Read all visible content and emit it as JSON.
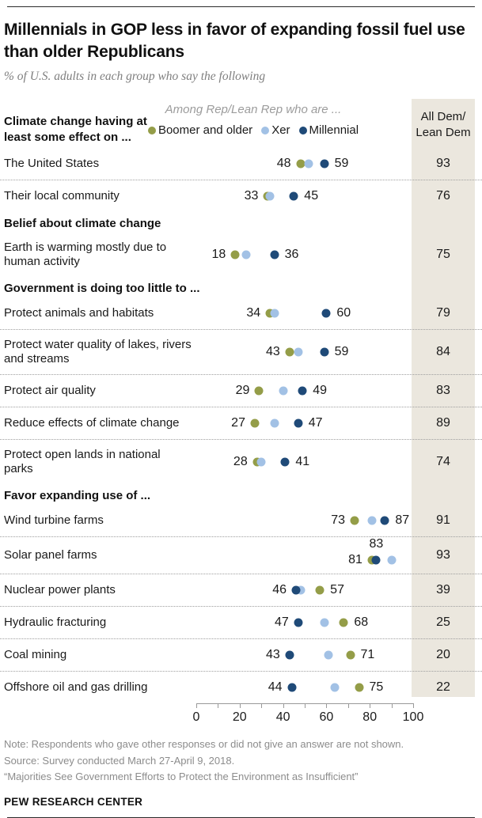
{
  "header": {
    "title": "Millennials in GOP less in favor of expanding fossil fuel use than older Republicans",
    "subtitle": "% of U.S. adults in each group who say the following",
    "left_heading": "Climate change having at least some effect on ..."
  },
  "legend": {
    "context": "Among Rep/Lean Rep who are ...",
    "items": [
      {
        "key": "boomer",
        "label": "Boomer and older"
      },
      {
        "key": "xer",
        "label": "Xer"
      },
      {
        "key": "millennial",
        "label": "Millennial"
      }
    ]
  },
  "colors": {
    "boomer": "#949d48",
    "xer": "#a2c1e5",
    "millennial": "#1f4a78",
    "dem_band_bg": "#ebe7de"
  },
  "dem_column": {
    "line1": "All Dem/",
    "line2": "Lean Dem"
  },
  "chart_data": {
    "type": "scatter",
    "variant": "dot-plot",
    "title": "Millennials in GOP less in favor of expanding fossil fuel use than older Republicans",
    "subtitle": "% of U.S. adults in each group who say the following",
    "series_names": [
      "Boomer and older",
      "Xer",
      "Millennial"
    ],
    "extra_column": "All Dem/Lean Dem",
    "x_axis": {
      "min": 0,
      "max": 100,
      "tick_step": 10,
      "labels": [
        "0",
        "20",
        "40",
        "60",
        "80",
        "100"
      ]
    },
    "rows": [
      {
        "kind": "item",
        "label": "The United States",
        "lines": 1,
        "boomer": 48,
        "xer": 52,
        "millennial": 59,
        "dem": 93,
        "label_left": {
          "series": "boomer",
          "text": "48"
        },
        "label_right": {
          "series": "millennial",
          "text": "59"
        },
        "sep": true
      },
      {
        "kind": "item",
        "label": "Their local community",
        "lines": 1,
        "boomer": 33,
        "xer": 34,
        "millennial": 45,
        "dem": 76,
        "label_left": {
          "series": "boomer",
          "text": "33"
        },
        "label_right": {
          "series": "millennial",
          "text": "45"
        },
        "sep": false
      },
      {
        "kind": "section",
        "label": "Belief about climate change"
      },
      {
        "kind": "item",
        "label": "Earth is warming mostly due to human activity",
        "lines": 2,
        "boomer": 18,
        "xer": 23,
        "millennial": 36,
        "dem": 75,
        "label_left": {
          "series": "boomer",
          "text": "18"
        },
        "label_right": {
          "series": "millennial",
          "text": "36"
        },
        "sep": false
      },
      {
        "kind": "section",
        "label": "Government is doing too little to ..."
      },
      {
        "kind": "item",
        "label": "Protect animals and habitats",
        "lines": 1,
        "boomer": 34,
        "xer": 36,
        "millennial": 60,
        "dem": 79,
        "label_left": {
          "series": "boomer",
          "text": "34"
        },
        "label_right": {
          "series": "millennial",
          "text": "60"
        },
        "sep": true
      },
      {
        "kind": "item",
        "label": "Protect water quality of lakes, rivers and streams",
        "lines": 2,
        "boomer": 43,
        "xer": 47,
        "millennial": 59,
        "dem": 84,
        "label_left": {
          "series": "boomer",
          "text": "43"
        },
        "label_right": {
          "series": "millennial",
          "text": "59"
        },
        "sep": true
      },
      {
        "kind": "item",
        "label": "Protect air quality",
        "lines": 1,
        "boomer": 29,
        "xer": 40,
        "millennial": 49,
        "dem": 83,
        "label_left": {
          "series": "boomer",
          "text": "29"
        },
        "label_right": {
          "series": "millennial",
          "text": "49"
        },
        "sep": true
      },
      {
        "kind": "item",
        "label": "Reduce effects of climate change",
        "lines": 1,
        "boomer": 27,
        "xer": 36,
        "millennial": 47,
        "dem": 89,
        "label_left": {
          "series": "boomer",
          "text": "27"
        },
        "label_right": {
          "series": "millennial",
          "text": "47"
        },
        "sep": true
      },
      {
        "kind": "item",
        "label": "Protect open lands in national parks",
        "lines": 2,
        "boomer": 28,
        "xer": 30,
        "millennial": 41,
        "dem": 74,
        "label_left": {
          "series": "boomer",
          "text": "28"
        },
        "label_right": {
          "series": "millennial",
          "text": "41"
        },
        "sep": false
      },
      {
        "kind": "section",
        "label": "Favor expanding use of ..."
      },
      {
        "kind": "item",
        "label": "Wind turbine farms",
        "lines": 1,
        "boomer": 73,
        "xer": 81,
        "millennial": 87,
        "dem": 91,
        "label_left": {
          "series": "boomer",
          "text": "73"
        },
        "label_right": {
          "series": "millennial",
          "text": "87"
        },
        "sep": true
      },
      {
        "kind": "item",
        "label": "Solar panel farms",
        "lines": 1,
        "boomer": 81,
        "xer": 90,
        "millennial": 83,
        "dem": 93,
        "label_left": {
          "series": "boomer",
          "text": "81"
        },
        "label_above": {
          "series": "millennial",
          "text": "83"
        },
        "sep": true
      },
      {
        "kind": "item",
        "label": "Nuclear power plants",
        "lines": 1,
        "boomer": 57,
        "xer": 48,
        "millennial": 46,
        "dem": 39,
        "label_left": {
          "series": "millennial",
          "text": "46"
        },
        "label_right": {
          "series": "boomer",
          "text": "57"
        },
        "sep": true
      },
      {
        "kind": "item",
        "label": "Hydraulic fracturing",
        "lines": 1,
        "boomer": 68,
        "xer": 59,
        "millennial": 47,
        "dem": 25,
        "label_left": {
          "series": "millennial",
          "text": "47"
        },
        "label_right": {
          "series": "boomer",
          "text": "68"
        },
        "sep": true
      },
      {
        "kind": "item",
        "label": "Coal mining",
        "lines": 1,
        "boomer": 71,
        "xer": 61,
        "millennial": 43,
        "dem": 20,
        "label_left": {
          "series": "millennial",
          "text": "43"
        },
        "label_right": {
          "series": "boomer",
          "text": "71"
        },
        "sep": true
      },
      {
        "kind": "item",
        "label": "Offshore oil and gas drilling",
        "lines": 1,
        "boomer": 75,
        "xer": 64,
        "millennial": 44,
        "dem": 22,
        "label_left": {
          "series": "millennial",
          "text": "44"
        },
        "label_right": {
          "series": "boomer",
          "text": "75"
        },
        "sep": false
      }
    ]
  },
  "footer": {
    "note": "Note: Respondents who gave other responses or did not give an answer are not shown.",
    "source": "Source: Survey conducted March 27-April 9, 2018.",
    "quote": "“Majorities See Government Efforts to Protect the Environment as Insufficient”",
    "brand": "PEW RESEARCH CENTER"
  }
}
